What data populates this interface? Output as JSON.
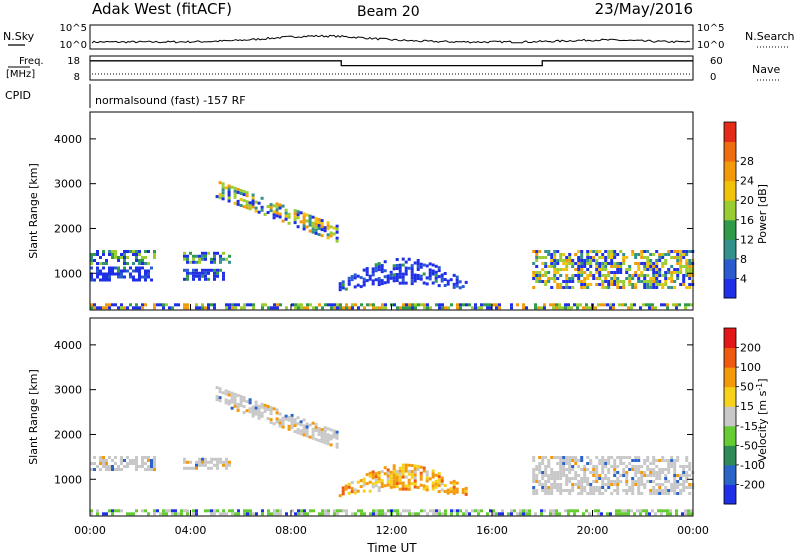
{
  "header": {
    "title": "Adak West (fitACF)",
    "beam": "Beam 20",
    "date": "23/May/2016"
  },
  "nsky": {
    "left_label": "N.Sky",
    "right_label": "N.Search",
    "left_ticks": [
      "10^5",
      "10^0"
    ],
    "right_ticks": [
      "10^5",
      "10^0"
    ]
  },
  "freq": {
    "left_label_line1": "Freq.",
    "left_label_line2": "[MHz]",
    "left_ticks": [
      "18",
      "8"
    ],
    "right_label": "Nave",
    "right_ticks": [
      "60",
      "0"
    ],
    "segments": [
      {
        "start": 0,
        "end": 10,
        "value": 16.0
      },
      {
        "start": 10,
        "end": 18,
        "value": 14.0
      },
      {
        "start": 18,
        "end": 24,
        "value": 16.0
      }
    ]
  },
  "cpid": {
    "label": "CPID",
    "mode": "normalsound (fast) -157 RF"
  },
  "time_axis": {
    "xlabel": "Time UT",
    "ticks": [
      "00:00",
      "04:00",
      "08:00",
      "12:00",
      "16:00",
      "20:00",
      "00:00"
    ]
  },
  "chart_data": [
    {
      "type": "heatmap",
      "name": "power",
      "xlabel": "Time UT",
      "ylabel": "Slant Range [km]",
      "xlim": [
        0,
        24
      ],
      "ylim": [
        180,
        4600
      ],
      "yticks": [
        "1000",
        "2000",
        "3000",
        "4000"
      ],
      "colorbar": {
        "label": "Power [dB]",
        "ticks": [
          "4",
          "8",
          "12",
          "16",
          "20",
          "24",
          "28"
        ],
        "colors": [
          "#1f2fe6",
          "#2a5cd0",
          "#33908a",
          "#2e9a4a",
          "#9acd32",
          "#f2c20a",
          "#f39a0a",
          "#ef6c0f",
          "#e22b18"
        ]
      },
      "echo_regions": [
        {
          "t0": 0.0,
          "t1": 2.6,
          "r0": 1250,
          "r1": 1520,
          "level": "mid"
        },
        {
          "t0": 0.0,
          "t1": 2.4,
          "r0": 820,
          "r1": 1150,
          "level": "low"
        },
        {
          "t0": 3.7,
          "t1": 5.5,
          "r0": 1250,
          "r1": 1480,
          "level": "mid"
        },
        {
          "t0": 3.7,
          "t1": 5.3,
          "r0": 850,
          "r1": 1100,
          "level": "low"
        },
        {
          "t0": 5.0,
          "t1": 9.8,
          "r0": 1700,
          "r1": 2900,
          "level": "high",
          "slope": true
        },
        {
          "t0": 9.9,
          "t1": 15.0,
          "r0": 650,
          "r1": 1350,
          "level": "low",
          "arc": true
        },
        {
          "t0": 17.6,
          "t1": 24.0,
          "r0": 700,
          "r1": 1520,
          "level": "high"
        },
        {
          "t0": 0.0,
          "t1": 24.0,
          "r0": 200,
          "r1": 330,
          "level": "mixed"
        }
      ]
    },
    {
      "type": "heatmap",
      "name": "velocity",
      "xlabel": "Time UT",
      "ylabel": "Slant Range [km]",
      "xlim": [
        0,
        24
      ],
      "ylim": [
        180,
        4600
      ],
      "yticks": [
        "1000",
        "2000",
        "3000",
        "4000"
      ],
      "colorbar": {
        "label_main": "Velocity [m s",
        "label_exp": "-1",
        "label_end": "]",
        "ticks": [
          "200",
          "100",
          "50",
          "15",
          "-15",
          "-50",
          "-100",
          "-200"
        ],
        "colors": [
          "#1f2fe6",
          "#2a64c8",
          "#2e8b57",
          "#66cc33",
          "#c8c8c8",
          "#f7d21a",
          "#f39a0a",
          "#ef5a10",
          "#e21818"
        ]
      },
      "echo_regions": [
        {
          "t0": 0.0,
          "t1": 2.6,
          "r0": 1250,
          "r1": 1520,
          "level": "gray"
        },
        {
          "t0": 3.7,
          "t1": 5.5,
          "r0": 1250,
          "r1": 1480,
          "level": "gray"
        },
        {
          "t0": 5.0,
          "t1": 9.8,
          "r0": 1700,
          "r1": 2900,
          "level": "gray",
          "slope": true
        },
        {
          "t0": 9.9,
          "t1": 15.0,
          "r0": 700,
          "r1": 1350,
          "level": "orange",
          "arc": true
        },
        {
          "t0": 17.6,
          "t1": 24.0,
          "r0": 700,
          "r1": 1520,
          "level": "gray"
        },
        {
          "t0": 0.0,
          "t1": 24.0,
          "r0": 200,
          "r1": 330,
          "level": "green"
        }
      ]
    }
  ]
}
